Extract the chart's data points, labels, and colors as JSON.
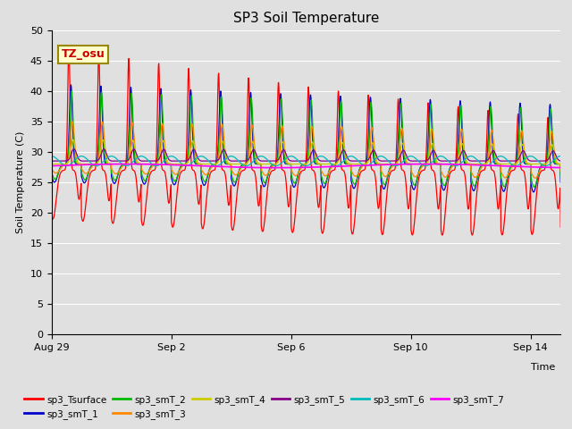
{
  "title": "SP3 Soil Temperature",
  "ylabel": "Soil Temperature (C)",
  "annotation": "TZ_osu",
  "ylim": [
    0,
    50
  ],
  "yticks": [
    0,
    5,
    10,
    15,
    20,
    25,
    30,
    35,
    40,
    45,
    50
  ],
  "xtick_labels": [
    "Aug 29",
    "Sep 2",
    "Sep 6",
    "Sep 10",
    "Sep 14"
  ],
  "xtick_positions": [
    0,
    4,
    8,
    12,
    16
  ],
  "xlim": [
    0,
    17
  ],
  "bg_color": "#e0e0e0",
  "series_colors": {
    "sp3_Tsurface": "#ff0000",
    "sp3_smT_1": "#0000cc",
    "sp3_smT_2": "#00bb00",
    "sp3_smT_3": "#ff8800",
    "sp3_smT_4": "#cccc00",
    "sp3_smT_5": "#880088",
    "sp3_smT_6": "#00bbbb",
    "sp3_smT_7": "#ff00ff"
  }
}
